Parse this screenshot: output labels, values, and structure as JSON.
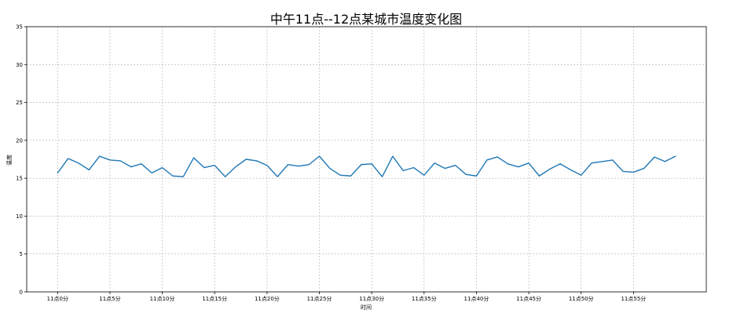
{
  "chart_data": {
    "type": "line",
    "title": "中午11点--12点某城市温度变化图",
    "xlabel": "时间",
    "ylabel": "温度",
    "x_tick_labels": [
      "11点0分",
      "11点5分",
      "11点10分",
      "11点15分",
      "11点20分",
      "11点25分",
      "11点30分",
      "11点35分",
      "11点40分",
      "11点45分",
      "11点50分",
      "11点55分"
    ],
    "x_tick_positions": [
      0,
      5,
      10,
      15,
      20,
      25,
      30,
      35,
      40,
      45,
      50,
      55
    ],
    "xlim": [
      -2.95,
      61.95
    ],
    "ylim": [
      0,
      35
    ],
    "y_ticks": [
      0,
      5,
      10,
      15,
      20,
      25,
      30,
      35
    ],
    "grid": true,
    "series": [
      {
        "color": "#1f77b4",
        "x": [
          0,
          1,
          2,
          3,
          4,
          5,
          6,
          7,
          8,
          9,
          10,
          11,
          12,
          13,
          14,
          15,
          16,
          17,
          18,
          19,
          20,
          21,
          22,
          23,
          24,
          25,
          26,
          27,
          28,
          29,
          30,
          31,
          32,
          33,
          34,
          35,
          36,
          37,
          38,
          39,
          40,
          41,
          42,
          43,
          44,
          45,
          46,
          47,
          48,
          49,
          50,
          51,
          52,
          53,
          54,
          55,
          56,
          57,
          58,
          59
        ],
        "values": [
          15.7,
          17.6,
          17.0,
          16.1,
          17.9,
          17.4,
          17.3,
          16.5,
          16.9,
          15.7,
          16.4,
          15.3,
          15.2,
          17.7,
          16.4,
          16.7,
          15.2,
          16.5,
          17.5,
          17.3,
          16.7,
          15.2,
          16.8,
          16.6,
          16.8,
          17.9,
          16.3,
          15.4,
          15.3,
          16.8,
          16.9,
          15.2,
          17.9,
          16.0,
          16.4,
          15.4,
          17.0,
          16.3,
          16.7,
          15.5,
          15.3,
          17.4,
          17.8,
          16.9,
          16.5,
          17.0,
          15.3,
          16.2,
          16.9,
          16.1,
          15.4,
          17.0,
          17.2,
          17.4,
          15.9,
          15.8,
          16.3,
          17.8,
          17.2,
          17.9
        ]
      }
    ]
  }
}
